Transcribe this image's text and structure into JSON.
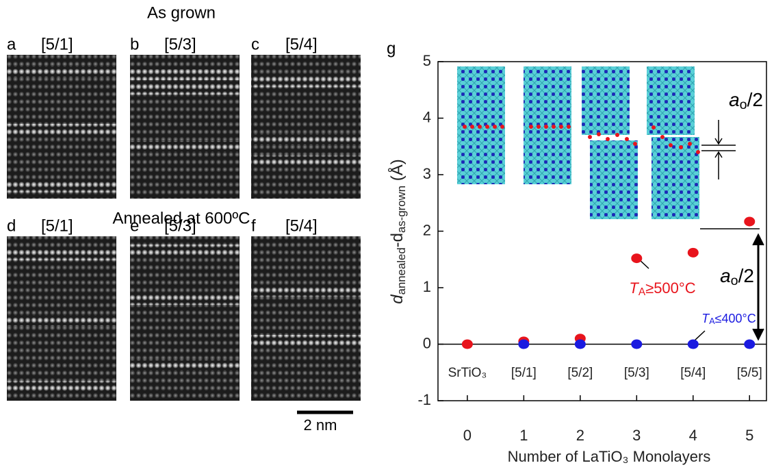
{
  "figure": {
    "top_heading": "As grown",
    "bottom_heading": "Annealed at 600ºC",
    "panels": [
      {
        "letter": "a",
        "label": "[5/1]"
      },
      {
        "letter": "b",
        "label": "[5/3]"
      },
      {
        "letter": "c",
        "label": "[5/4]"
      },
      {
        "letter": "d",
        "label": "[5/1]"
      },
      {
        "letter": "e",
        "label": "[5/3]"
      },
      {
        "letter": "f",
        "label": "[5/4]"
      }
    ],
    "scale_bar": "2 nm",
    "chart_letter": "g"
  },
  "chart_data": {
    "type": "scatter",
    "xlabel": "Number of LaTiO₃ Monolayers",
    "ylabel": [
      "d",
      "annealed",
      "-d",
      "as-grown",
      " (Å)"
    ],
    "xlim": [
      -0.52,
      5.3
    ],
    "ylim": [
      -1,
      5
    ],
    "xticks": [
      0,
      1,
      2,
      3,
      4,
      5
    ],
    "yticks": [
      -1,
      0,
      1,
      2,
      3,
      4,
      5
    ],
    "category_labels": [
      "SrTiO₃",
      "[5/1]",
      "[5/2]",
      "[5/3]",
      "[5/4]",
      "[5/5]"
    ],
    "series": [
      {
        "name": [
          "T",
          "A",
          "≥500°C"
        ],
        "color": "#e8141c",
        "x": [
          0,
          1,
          2,
          3,
          4,
          5
        ],
        "values": [
          0,
          0.05,
          0.1,
          1.52,
          1.62,
          2.17
        ]
      },
      {
        "name": [
          "T",
          "A",
          "≤400°C"
        ],
        "color": "#1a1ae0",
        "x": [
          1,
          2,
          3,
          4,
          5
        ],
        "values": [
          0,
          0,
          0,
          0,
          0
        ]
      }
    ],
    "annotations": [
      [
        "a",
        "o",
        "/2"
      ],
      [
        "a",
        "o",
        "/2"
      ]
    ]
  }
}
